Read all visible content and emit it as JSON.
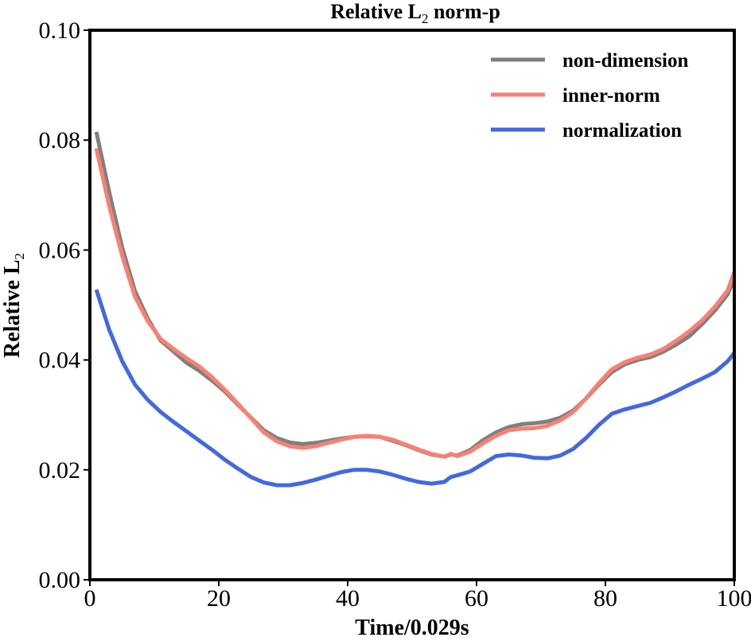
{
  "chart_data": {
    "type": "line",
    "title": {
      "prefix": "Relative L",
      "sub": "2",
      "suffix": " norm-p"
    },
    "xlabel": "Time/0.029s",
    "ylabel": {
      "prefix": "Relative L",
      "sub": "2"
    },
    "xlim": [
      0,
      100
    ],
    "ylim": [
      0.0,
      0.1
    ],
    "xticks": [
      0,
      20,
      40,
      60,
      80,
      100
    ],
    "xtick_labels": [
      "0",
      "20",
      "40",
      "60",
      "80",
      "100"
    ],
    "yticks": [
      0.0,
      0.02,
      0.04,
      0.06,
      0.08,
      0.1
    ],
    "ytick_labels": [
      "0.00",
      "0.02",
      "0.04",
      "0.06",
      "0.08",
      "0.10"
    ],
    "legend_position": "top-right",
    "grid": false,
    "series": [
      {
        "name": "non-dimension",
        "color": "#808080",
        "x": [
          1,
          3,
          5,
          7,
          9,
          11,
          13,
          15,
          17,
          19,
          21,
          23,
          25,
          27,
          29,
          31,
          33,
          35,
          37,
          39,
          41,
          43,
          45,
          47,
          49,
          51,
          53,
          55,
          56,
          57,
          59,
          61,
          63,
          65,
          67,
          69,
          71,
          73,
          75,
          77,
          79,
          81,
          83,
          85,
          87,
          89,
          91,
          93,
          95,
          97,
          99,
          100
        ],
        "values": [
          0.0815,
          0.0705,
          0.0605,
          0.0525,
          0.0475,
          0.0435,
          0.0415,
          0.0395,
          0.038,
          0.0362,
          0.0342,
          0.0318,
          0.0295,
          0.0272,
          0.0258,
          0.025,
          0.0247,
          0.0249,
          0.0253,
          0.0257,
          0.026,
          0.0261,
          0.026,
          0.0253,
          0.0245,
          0.0236,
          0.0228,
          0.0224,
          0.0228,
          0.0226,
          0.0236,
          0.0254,
          0.0268,
          0.0278,
          0.0283,
          0.0285,
          0.0288,
          0.0295,
          0.0308,
          0.033,
          0.0355,
          0.0378,
          0.0392,
          0.04,
          0.0405,
          0.0415,
          0.0428,
          0.0443,
          0.0465,
          0.049,
          0.052,
          0.055
        ]
      },
      {
        "name": "inner-norm",
        "color": "#fa8072",
        "x": [
          1,
          3,
          5,
          7,
          9,
          11,
          13,
          15,
          17,
          19,
          21,
          23,
          25,
          27,
          29,
          31,
          33,
          35,
          37,
          39,
          41,
          43,
          45,
          47,
          49,
          51,
          53,
          55,
          56,
          57,
          59,
          61,
          63,
          65,
          67,
          69,
          71,
          73,
          75,
          77,
          79,
          81,
          83,
          85,
          87,
          89,
          91,
          93,
          95,
          97,
          99,
          100
        ],
        "values": [
          0.0785,
          0.068,
          0.059,
          0.0515,
          0.047,
          0.0438,
          0.042,
          0.0403,
          0.0388,
          0.0368,
          0.0345,
          0.032,
          0.0294,
          0.0268,
          0.0252,
          0.0243,
          0.024,
          0.0243,
          0.0249,
          0.0255,
          0.026,
          0.0262,
          0.026,
          0.0255,
          0.0246,
          0.0237,
          0.0229,
          0.0224,
          0.0229,
          0.0225,
          0.0233,
          0.0248,
          0.0262,
          0.0272,
          0.0275,
          0.0276,
          0.028,
          0.029,
          0.0305,
          0.033,
          0.0358,
          0.0383,
          0.0396,
          0.0404,
          0.041,
          0.042,
          0.0435,
          0.0452,
          0.0472,
          0.0497,
          0.0527,
          0.056
        ]
      },
      {
        "name": "normalization",
        "color": "#4169e1",
        "x": [
          1,
          3,
          5,
          7,
          9,
          11,
          13,
          15,
          17,
          19,
          21,
          23,
          25,
          27,
          29,
          31,
          33,
          35,
          37,
          39,
          41,
          43,
          45,
          47,
          49,
          51,
          53,
          55,
          56,
          57,
          59,
          61,
          63,
          65,
          67,
          69,
          71,
          73,
          75,
          77,
          79,
          81,
          83,
          85,
          87,
          89,
          91,
          93,
          95,
          97,
          99,
          100
        ],
        "values": [
          0.0528,
          0.0455,
          0.0398,
          0.0355,
          0.0327,
          0.0305,
          0.0287,
          0.027,
          0.0253,
          0.0236,
          0.0218,
          0.0202,
          0.0187,
          0.0177,
          0.0172,
          0.0172,
          0.0176,
          0.0182,
          0.0189,
          0.0196,
          0.02,
          0.02,
          0.0197,
          0.0191,
          0.0184,
          0.0178,
          0.0175,
          0.0178,
          0.0187,
          0.019,
          0.0197,
          0.0211,
          0.0225,
          0.0228,
          0.0226,
          0.0222,
          0.0221,
          0.0226,
          0.0238,
          0.0258,
          0.0282,
          0.0302,
          0.031,
          0.0316,
          0.0322,
          0.0332,
          0.0343,
          0.0355,
          0.0366,
          0.0378,
          0.0398,
          0.0413
        ]
      }
    ]
  }
}
